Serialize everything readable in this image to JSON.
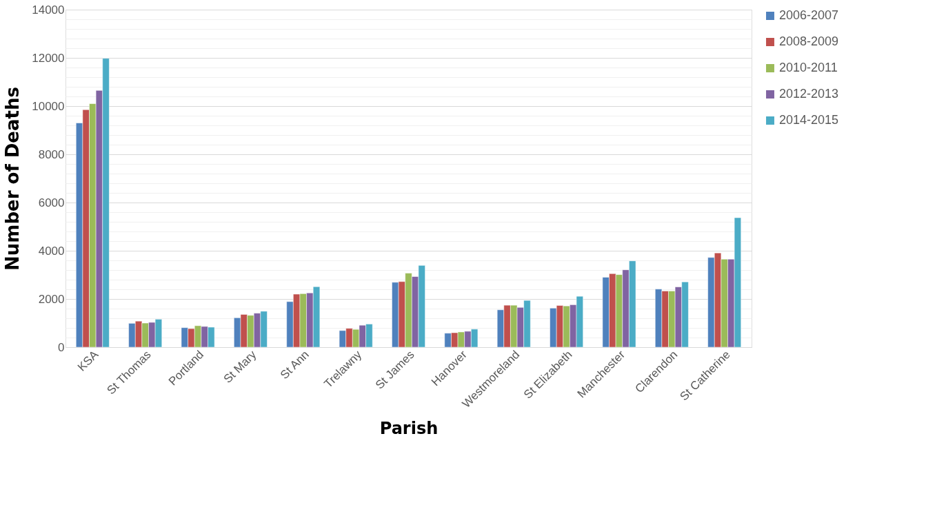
{
  "chart_data": {
    "type": "bar",
    "xlabel": "Parish",
    "ylabel": "Number of Deaths",
    "categories": [
      "KSA",
      "St Thomas",
      "Portland",
      "St Mary",
      "St Ann",
      "Trelawny",
      "St James",
      "Hanover",
      "Westmoreland",
      "St Elizabeth",
      "Manchester",
      "Clarendon",
      "St Catherine"
    ],
    "series": [
      {
        "name": "2006-2007",
        "color": "#4f81bd",
        "values": [
          9300,
          990,
          810,
          1220,
          1890,
          690,
          2690,
          580,
          1550,
          1620,
          2900,
          2410,
          3720
        ]
      },
      {
        "name": "2008-2009",
        "color": "#c0504d",
        "values": [
          9850,
          1080,
          770,
          1360,
          2200,
          780,
          2720,
          600,
          1740,
          1730,
          3050,
          2330,
          3910
        ]
      },
      {
        "name": "2010-2011",
        "color": "#9bbb59",
        "values": [
          10100,
          1000,
          890,
          1320,
          2220,
          740,
          3070,
          630,
          1740,
          1710,
          3010,
          2330,
          3650
        ]
      },
      {
        "name": "2012-2013",
        "color": "#8064a2",
        "values": [
          10650,
          1030,
          860,
          1410,
          2250,
          910,
          2930,
          660,
          1650,
          1760,
          3210,
          2500,
          3650
        ]
      },
      {
        "name": "2014-2015",
        "color": "#4bacc6",
        "values": [
          11980,
          1160,
          830,
          1490,
          2510,
          960,
          3390,
          750,
          1940,
          2110,
          3580,
          2710,
          5370
        ]
      }
    ],
    "ylim": [
      0,
      14000
    ],
    "yticks": [
      0,
      {
        "value": 400,
        "label": null
      },
      {
        "value": 800,
        "label": null
      },
      {
        "value": 1200,
        "label": null
      },
      {
        "value": 1600,
        "label": null
      },
      2000,
      {
        "value": 2400,
        "label": null
      },
      {
        "value": 2800,
        "label": null
      },
      {
        "value": 3200,
        "label": null
      },
      {
        "value": 3600,
        "label": null
      },
      4000,
      {
        "value": 4400,
        "label": null
      },
      {
        "value": 4800,
        "label": null
      },
      {
        "value": 5200,
        "label": null
      },
      {
        "value": 5600,
        "label": null
      },
      6000,
      {
        "value": 6400,
        "label": null
      },
      {
        "value": 6800,
        "label": null
      },
      {
        "value": 7200,
        "label": null
      },
      {
        "value": 7600,
        "label": null
      },
      8000,
      {
        "value": 8400,
        "label": null
      },
      {
        "value": 8800,
        "label": null
      },
      {
        "value": 9200,
        "label": null
      },
      {
        "value": 9600,
        "label": null
      },
      10000,
      {
        "value": 10400,
        "label": null
      },
      {
        "value": 10800,
        "label": null
      },
      {
        "value": 11200,
        "label": null
      },
      {
        "value": 11600,
        "label": null
      },
      12000,
      {
        "value": 12400,
        "label": null
      },
      {
        "value": 12800,
        "label": null
      },
      {
        "value": 13200,
        "label": null
      },
      {
        "value": 13600,
        "label": null
      },
      14000
    ],
    "grid": "y",
    "legend": "right"
  }
}
